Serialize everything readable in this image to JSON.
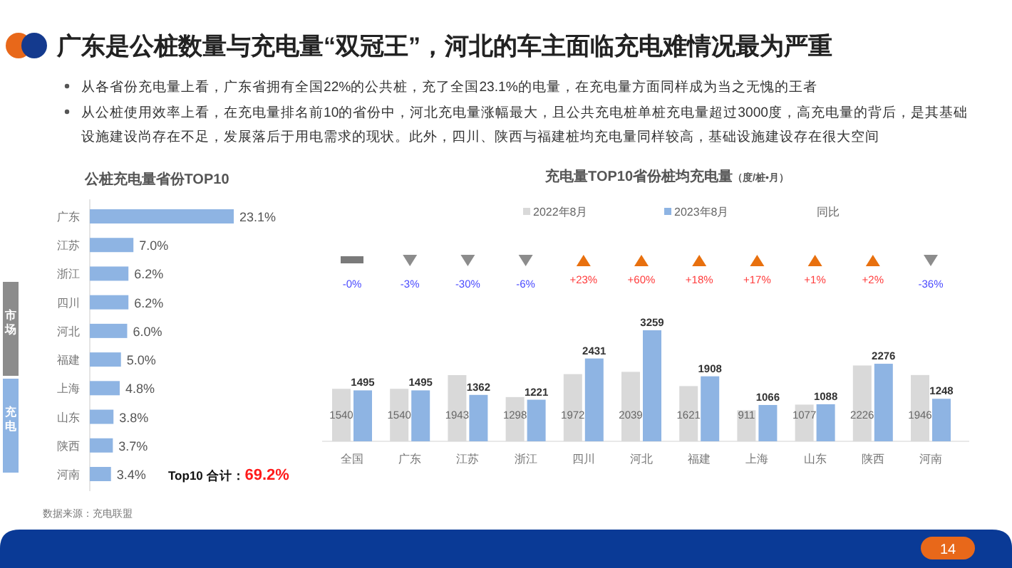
{
  "chart_data": [
    {
      "type": "other",
      "title": "广东是公桩数量与充电量“双冠王”，河北的车主面临充电难情况最为严重",
      "annotations": [
        "从各省份充电量上看，广东省拥有全国22%的公共桩，充了全国23.1%的电量，在充电量方面同样成为当之无愧的王者",
        "从公桩使用效率上看，在充电量排名前10的省份中，河北充电量涨幅最大，且公共充电桩单桩充电量超过3000度，高充电量的背后，是其基础设施建设尚存在不足，发展落后于用电需求的现状。此外，四川、陕西与福建桩均充电量同样较高，基础设施建设存在很大空间",
        "数据来源：充电联盟",
        "14"
      ]
    },
    {
      "type": "bar",
      "orientation": "horizontal",
      "title": "公桩充电量省份TOP10",
      "categories": [
        "广东",
        "江苏",
        "浙江",
        "四川",
        "河北",
        "福建",
        "上海",
        "山东",
        "陕西",
        "河南"
      ],
      "values": [
        23.1,
        7.0,
        6.2,
        6.2,
        6.0,
        5.0,
        4.8,
        3.8,
        3.7,
        3.4
      ],
      "value_labels": [
        "23.1%",
        "7.0%",
        "6.2%",
        "6.2%",
        "6.0%",
        "5.0%",
        "4.8%",
        "3.8%",
        "3.7%",
        "3.4%"
      ],
      "color": "#8eb4e3",
      "annotations": [
        "市场",
        "充电",
        "Top10 合计：",
        "69.2%"
      ]
    },
    {
      "type": "bar",
      "title": "充电量TOP10省份桩均充电量",
      "subtitle": "（度/桩•月）",
      "categories": [
        "全国",
        "广东",
        "江苏",
        "浙江",
        "四川",
        "河北",
        "福建",
        "上海",
        "山东",
        "陕西",
        "河南"
      ],
      "series": [
        {
          "name": "2022年8月",
          "color": "#d9d9d9",
          "values": [
            1540,
            1540,
            1943,
            1298,
            1972,
            2039,
            1621,
            911,
            1077,
            2226,
            1946
          ]
        },
        {
          "name": "2023年8月",
          "color": "#8eb4e3",
          "values": [
            1495,
            1495,
            1362,
            1221,
            2431,
            3259,
            1908,
            1066,
            1088,
            2276,
            1248
          ]
        }
      ],
      "data_labels": true,
      "legend": "top",
      "annotations": [
        "同比",
        "-0%",
        "-3%",
        "-30%",
        "-6%",
        "+23%",
        "+60%",
        "+18%",
        "+17%",
        "+1%",
        "+2%",
        "-36%"
      ]
    }
  ]
}
